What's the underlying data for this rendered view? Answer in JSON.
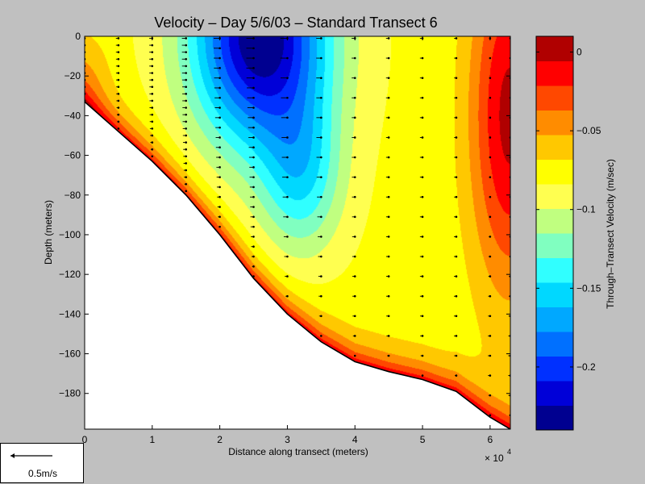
{
  "chart_data": {
    "type": "contour",
    "title": "Velocity – Day 5/6/03 – Standard Transect 6",
    "xlabel": "Distance along transect (meters)",
    "ylabel": "Depth (meters)",
    "x_multiplier": "× 10",
    "x_multiplier_exp": "4",
    "xlim": [
      0,
      6.3
    ],
    "ylim": [
      -198,
      0
    ],
    "x_ticks": [
      0,
      1,
      2,
      3,
      4,
      5,
      6
    ],
    "y_ticks": [
      0,
      -20,
      -40,
      -60,
      -80,
      -100,
      -120,
      -140,
      -160,
      -180
    ],
    "x_tick_labels": [
      "0",
      "1",
      "2",
      "3",
      "4",
      "5",
      "6"
    ],
    "y_tick_labels": [
      "0",
      "−20",
      "−40",
      "−60",
      "−80",
      "−100",
      "−120",
      "−140",
      "−160",
      "−180"
    ],
    "bathymetry": {
      "x": [
        0,
        0.5,
        1,
        1.5,
        2,
        2.5,
        3,
        3.5,
        4,
        4.5,
        5,
        5.5,
        6,
        6.3
      ],
      "depth": [
        -33,
        -48,
        -63,
        -80,
        -100,
        -122,
        -140,
        -154,
        -164,
        -169,
        -173,
        -179,
        -192,
        -198
      ]
    },
    "station_x": [
      0,
      0.5,
      1,
      1.5,
      2,
      2.5,
      3,
      3.5,
      4,
      4.5,
      5,
      5.5,
      6,
      6.3
    ],
    "colorbar": {
      "label": "Through–Transect Velocity (m/sec)",
      "range": [
        -0.24,
        0.01
      ],
      "levels": 15,
      "ticks": [
        0,
        -0.05,
        -0.1,
        -0.15,
        -0.2
      ],
      "tick_labels": [
        "0",
        "−0.05",
        "−0.1",
        "−0.15",
        "−0.2"
      ],
      "colors": [
        "#000090",
        "#0000d8",
        "#0030ff",
        "#0070ff",
        "#00a8ff",
        "#00d8ff",
        "#30ffff",
        "#80ffc0",
        "#c0ff80",
        "#ffff50",
        "#ffff00",
        "#ffc800",
        "#ff8c00",
        "#ff4800",
        "#ff0000",
        "#b00000"
      ]
    },
    "scale_vector": {
      "label": "0.5m/s"
    }
  }
}
